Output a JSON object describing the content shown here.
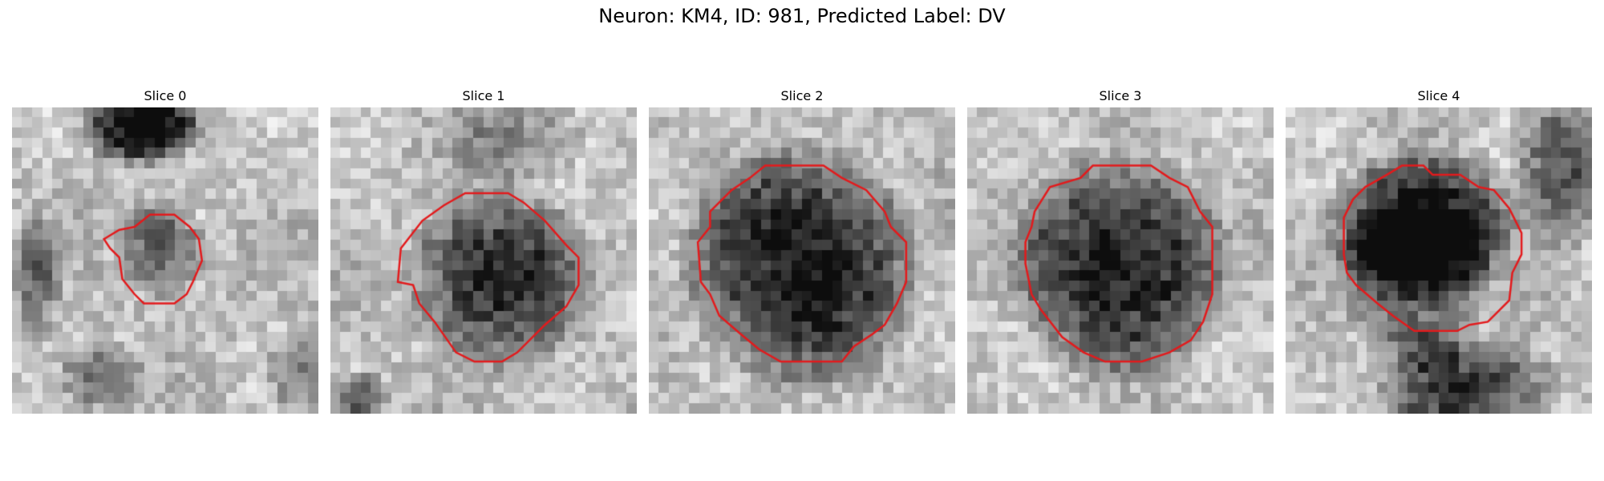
{
  "figure": {
    "title": "Neuron: KM4, ID: 981, Predicted Label: DV"
  },
  "panels": [
    {
      "title": "Slice 0",
      "image_description": "grayscale EM patch, small dark cell with red outline",
      "outline_color": "#e31a1c"
    },
    {
      "title": "Slice 1",
      "image_description": "grayscale EM patch, medium dark cell with red outline",
      "outline_color": "#e31a1c"
    },
    {
      "title": "Slice 2",
      "image_description": "grayscale EM patch, large dark cell with red outline",
      "outline_color": "#e31a1c"
    },
    {
      "title": "Slice 3",
      "image_description": "grayscale EM patch, large dark cell with red outline",
      "outline_color": "#e31a1c"
    },
    {
      "title": "Slice 4",
      "image_description": "grayscale EM patch, dark cell with red outline",
      "outline_color": "#e31a1c"
    }
  ]
}
